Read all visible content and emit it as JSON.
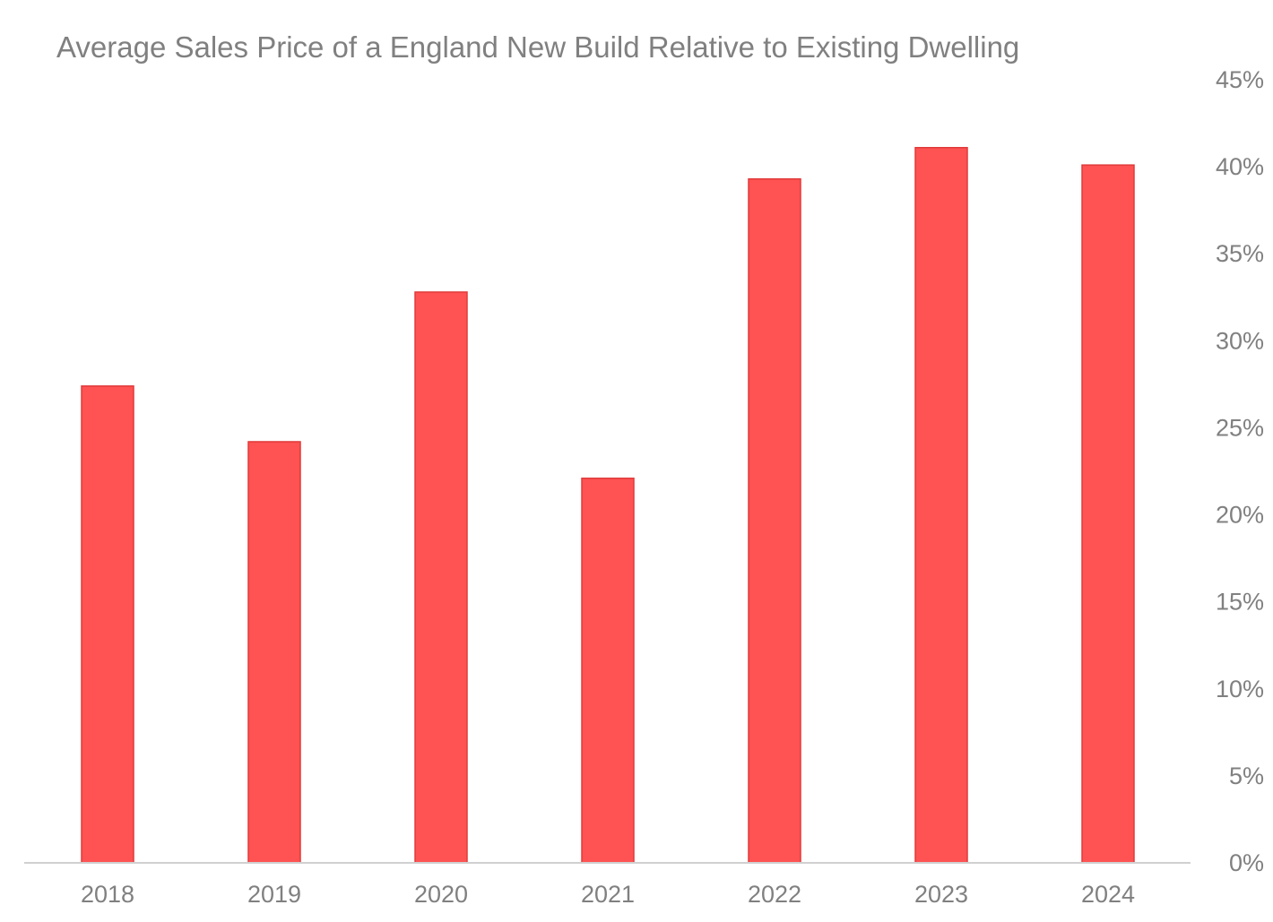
{
  "chart_data": {
    "type": "bar",
    "title": "Average Sales Price of a England New Build Relative to Existing Dwelling",
    "xlabel": "",
    "ylabel": "",
    "categories": [
      "2018",
      "2019",
      "2020",
      "2021",
      "2022",
      "2023",
      "2024"
    ],
    "series": [
      {
        "values": [
          27.4,
          24.2,
          32.8,
          22.1,
          39.3,
          41.1,
          40.1
        ]
      }
    ],
    "ylim": [
      0,
      45
    ],
    "yticks": [
      "0%",
      "5%",
      "10%",
      "15%",
      "20%",
      "25%",
      "30%",
      "35%",
      "40%",
      "45%"
    ],
    "y_axis_position": "right",
    "grid": false,
    "legend": "none",
    "colors": {
      "bar_fill": "#FF5252",
      "bar_stroke": "#E03A3A",
      "text": "#808080",
      "axis_line": "#D0D0D0"
    }
  }
}
